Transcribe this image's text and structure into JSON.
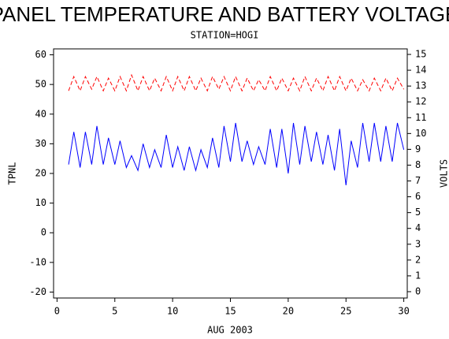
{
  "chart_data": {
    "type": "line",
    "title": "PANEL TEMPERATURE AND BATTERY VOLTAGE",
    "subtitle": "STATION=HOGI",
    "xlabel": "AUG 2003",
    "ylabel": "TPNL",
    "y2label": "VOLTS",
    "x": [
      1,
      1.45,
      2,
      2.45,
      3,
      3.45,
      4,
      4.45,
      5,
      5.45,
      6,
      6.45,
      7,
      7.45,
      8,
      8.45,
      9,
      9.45,
      10,
      10.45,
      11,
      11.45,
      12,
      12.45,
      13,
      13.45,
      14,
      14.45,
      15,
      15.45,
      16,
      16.45,
      17,
      17.45,
      18,
      18.45,
      19,
      19.45,
      20,
      20.45,
      21,
      21.45,
      22,
      22.45,
      23,
      23.45,
      24,
      24.45,
      25,
      25.45,
      26,
      26.45,
      27,
      27.45,
      28,
      28.45,
      29,
      29.45,
      30
    ],
    "series": [
      {
        "color": "#0000ff",
        "dash": false,
        "values": [
          23,
          34,
          22,
          34,
          23,
          36,
          23,
          32,
          23,
          31,
          22,
          26,
          21,
          30,
          22,
          28,
          22,
          33,
          22,
          29,
          21,
          29,
          21,
          28,
          22,
          32,
          22,
          36,
          24,
          37,
          24,
          31,
          23,
          29,
          23,
          35,
          22,
          35,
          20,
          37,
          23,
          36,
          24,
          34,
          23,
          33,
          21,
          35,
          16,
          31,
          22,
          37,
          24,
          37,
          24,
          36,
          24,
          37,
          28
        ]
      },
      {
        "color": "#ff0000",
        "dash": true,
        "axis": "y2",
        "values": [
          12.7,
          13.6,
          12.7,
          13.6,
          12.8,
          13.6,
          12.7,
          13.5,
          12.7,
          13.6,
          12.7,
          13.7,
          12.7,
          13.6,
          12.7,
          13.5,
          12.7,
          13.6,
          12.7,
          13.6,
          12.7,
          13.6,
          12.7,
          13.5,
          12.7,
          13.6,
          12.8,
          13.6,
          12.7,
          13.6,
          12.7,
          13.5,
          12.7,
          13.4,
          12.7,
          13.6,
          12.7,
          13.5,
          12.7,
          13.5,
          12.7,
          13.6,
          12.7,
          13.5,
          12.7,
          13.6,
          12.7,
          13.6,
          12.7,
          13.5,
          12.7,
          13.4,
          12.7,
          13.5,
          12.7,
          13.5,
          12.7,
          13.5,
          12.8
        ]
      }
    ],
    "xlim": [
      -0.3,
      30.3
    ],
    "xticks": [
      0,
      5,
      10,
      15,
      20,
      25,
      30
    ],
    "ylim": [
      -22,
      62
    ],
    "yticks": [
      -20,
      -10,
      0,
      10,
      20,
      30,
      40,
      50,
      60
    ],
    "y2lim": [
      -0.4,
      15.35
    ],
    "y2ticks": [
      0,
      1,
      2,
      3,
      4,
      5,
      6,
      7,
      8,
      9,
      10,
      11,
      12,
      13,
      14,
      15
    ]
  }
}
